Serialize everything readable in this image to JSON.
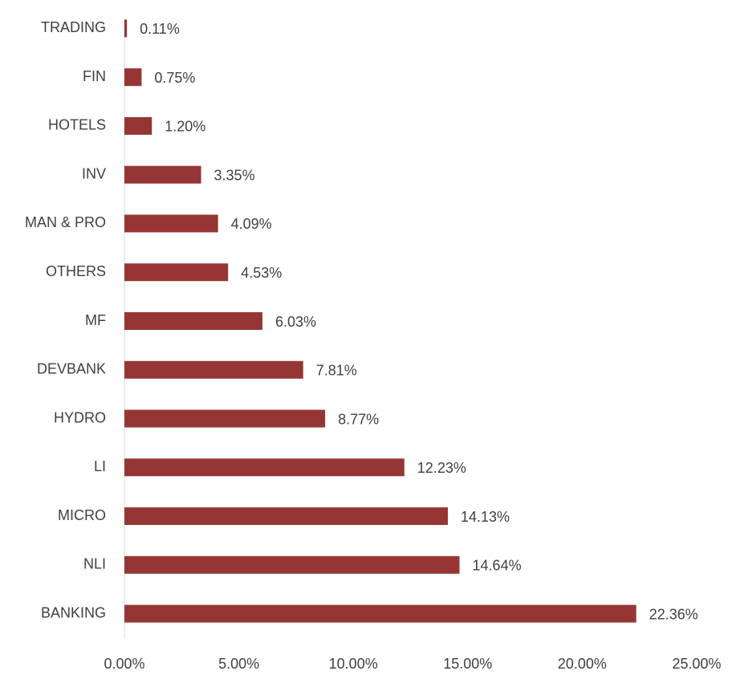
{
  "chart_data": {
    "type": "bar",
    "orientation": "horizontal",
    "categories": [
      "TRADING",
      "FIN",
      "HOTELS",
      "INV",
      "MAN & PRO",
      "OTHERS",
      "MF",
      "DEVBANK",
      "HYDRO",
      "LI",
      "MICRO",
      "NLI",
      "BANKING"
    ],
    "values": [
      0.11,
      0.75,
      1.2,
      3.35,
      4.09,
      4.53,
      6.03,
      7.81,
      8.77,
      12.23,
      14.13,
      14.64,
      22.36
    ],
    "value_labels": [
      "0.11%",
      "0.75%",
      "1.20%",
      "3.35%",
      "4.09%",
      "4.53%",
      "6.03%",
      "7.81%",
      "8.77%",
      "12.23%",
      "14.13%",
      "14.64%",
      "22.36%"
    ],
    "color": "#963634",
    "xlim": [
      0,
      25
    ],
    "xticks": [
      {
        "value": 0,
        "label": "0.00%"
      },
      {
        "value": 5,
        "label": "5.00%"
      },
      {
        "value": 10,
        "label": "10.00%"
      },
      {
        "value": 15,
        "label": "15.00%"
      },
      {
        "value": 20,
        "label": "20.00%"
      },
      {
        "value": 25,
        "label": "25.00%"
      }
    ],
    "grid": false
  }
}
